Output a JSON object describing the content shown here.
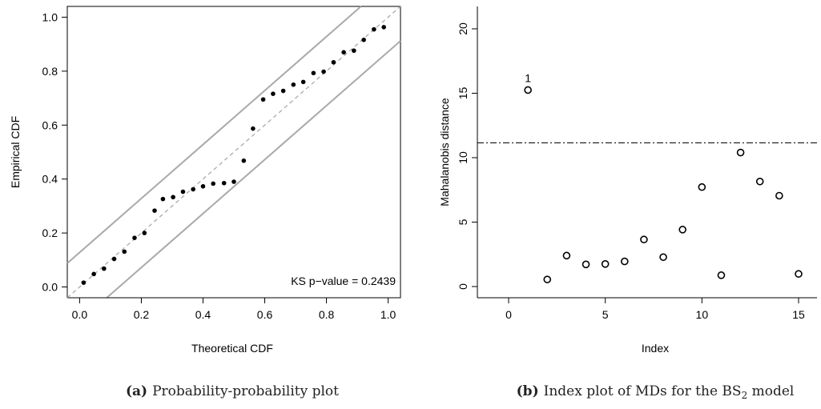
{
  "chart_data": [
    {
      "type": "scatter",
      "caption_label": "(a)",
      "caption_text": "Probability-probability plot",
      "xlabel": "Theoretical CDF",
      "ylabel": "Empirical CDF",
      "xlim": [
        -0.04,
        1.04
      ],
      "ylim": [
        -0.04,
        1.04
      ],
      "xticks": [
        "0.0",
        "0.2",
        "0.4",
        "0.6",
        "0.8",
        "1.0"
      ],
      "xtick_values": [
        0.0,
        0.2,
        0.4,
        0.6,
        0.8,
        1.0
      ],
      "yticks": [
        "0.0",
        "0.2",
        "0.4",
        "0.6",
        "0.8",
        "1.0"
      ],
      "ytick_values": [
        0.0,
        0.2,
        0.4,
        0.6,
        0.8,
        1.0
      ],
      "annotation": "KS p−value = 0.2439",
      "reference_line": {
        "style": "dashed",
        "color": "#aaaaaa",
        "slope": 1,
        "intercept": 0
      },
      "bands": {
        "color": "#aaaaaa",
        "offset": 0.128
      },
      "series": [
        {
          "x": [
            0.013,
            0.046,
            0.079,
            0.112,
            0.145,
            0.178,
            0.21,
            0.243,
            0.27,
            0.303,
            0.335,
            0.368,
            0.4,
            0.433,
            0.468,
            0.5,
            0.532,
            0.562,
            0.595,
            0.627,
            0.66,
            0.693,
            0.725,
            0.758,
            0.791,
            0.823,
            0.856,
            0.889,
            0.921,
            0.954,
            0.986
          ],
          "y": [
            0.016,
            0.048,
            0.068,
            0.104,
            0.131,
            0.182,
            0.2,
            0.283,
            0.326,
            0.333,
            0.353,
            0.362,
            0.373,
            0.383,
            0.385,
            0.39,
            0.468,
            0.587,
            0.695,
            0.716,
            0.727,
            0.75,
            0.76,
            0.793,
            0.798,
            0.833,
            0.87,
            0.876,
            0.916,
            0.955,
            0.963
          ]
        }
      ]
    },
    {
      "type": "scatter",
      "caption_label": "(b)",
      "caption_text": "Index plot of MDs for the BS",
      "caption_sub": "2",
      "caption_tail": " model",
      "xlabel": "Index",
      "ylabel": "Mahalanobis distance",
      "xlim": [
        -0.2,
        16.0
      ],
      "ylim": [
        0,
        20
      ],
      "xticks": [
        "0",
        "5",
        "10",
        "15"
      ],
      "xtick_values": [
        0,
        5,
        10,
        15
      ],
      "yticks": [
        "0",
        "5",
        "10",
        "15",
        "20"
      ],
      "ytick_values": [
        0,
        5,
        10,
        15,
        20
      ],
      "threshold": {
        "value": 11.15,
        "style": "dash-dot"
      },
      "point_labels": [
        {
          "index": 1,
          "text": "1"
        }
      ],
      "series": [
        {
          "x": [
            1,
            2,
            3,
            4,
            5,
            6,
            7,
            8,
            9,
            10,
            11,
            12,
            13,
            14,
            15
          ],
          "y": [
            15.25,
            0.55,
            2.4,
            1.72,
            1.75,
            1.95,
            3.65,
            2.28,
            4.42,
            7.72,
            0.88,
            10.4,
            8.15,
            7.05,
            0.98
          ]
        }
      ]
    }
  ]
}
